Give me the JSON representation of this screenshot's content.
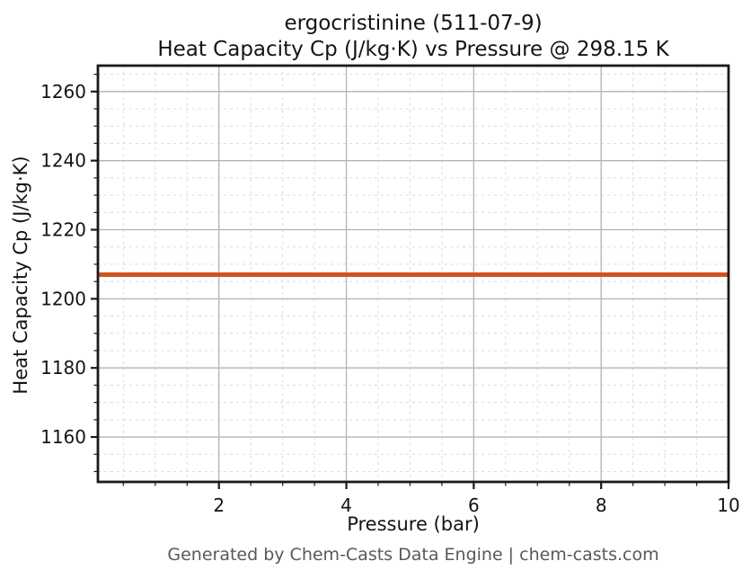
{
  "title": {
    "line1": "ergocristinine (511-07-9)",
    "line2": "Heat Capacity Cp (J/kg·K) vs Pressure @ 298.15 K"
  },
  "axes": {
    "xlabel": "Pressure (bar)",
    "ylabel": "Heat Capacity Cp (J/kg·K)"
  },
  "footer": {
    "text": "Generated by Chem-Casts Data Engine | chem-casts.com"
  },
  "chart_data": {
    "type": "line",
    "title": "ergocristinine (511-07-9)\nHeat Capacity Cp (J/kg·K) vs Pressure @ 298.15 K",
    "xlabel": "Pressure (bar)",
    "ylabel": "Heat Capacity Cp (J/kg·K)",
    "series": [
      {
        "name": "Heat Capacity Cp",
        "x": [
          0.1,
          1,
          2,
          3,
          4,
          5,
          6,
          7,
          8,
          9,
          10
        ],
        "y": [
          1207,
          1207,
          1207,
          1207,
          1207,
          1207,
          1207,
          1207,
          1207,
          1207,
          1207
        ],
        "color": "#d2521e",
        "linewidth": 5
      }
    ],
    "xlim": [
      0.1,
      10
    ],
    "ylim": [
      1147,
      1267.5
    ],
    "xticks": [
      2,
      4,
      6,
      8,
      10
    ],
    "yticks": [
      1160,
      1180,
      1200,
      1220,
      1240,
      1260
    ],
    "x_minor_step": 0.5,
    "y_minor_step": 5,
    "grid": {
      "on": true,
      "major_color": "#b3b3b3",
      "minor_color": "#dcdcdc"
    },
    "spine_color": "#1a1a1a",
    "tick_label_color": "#141414",
    "legend": "none"
  }
}
